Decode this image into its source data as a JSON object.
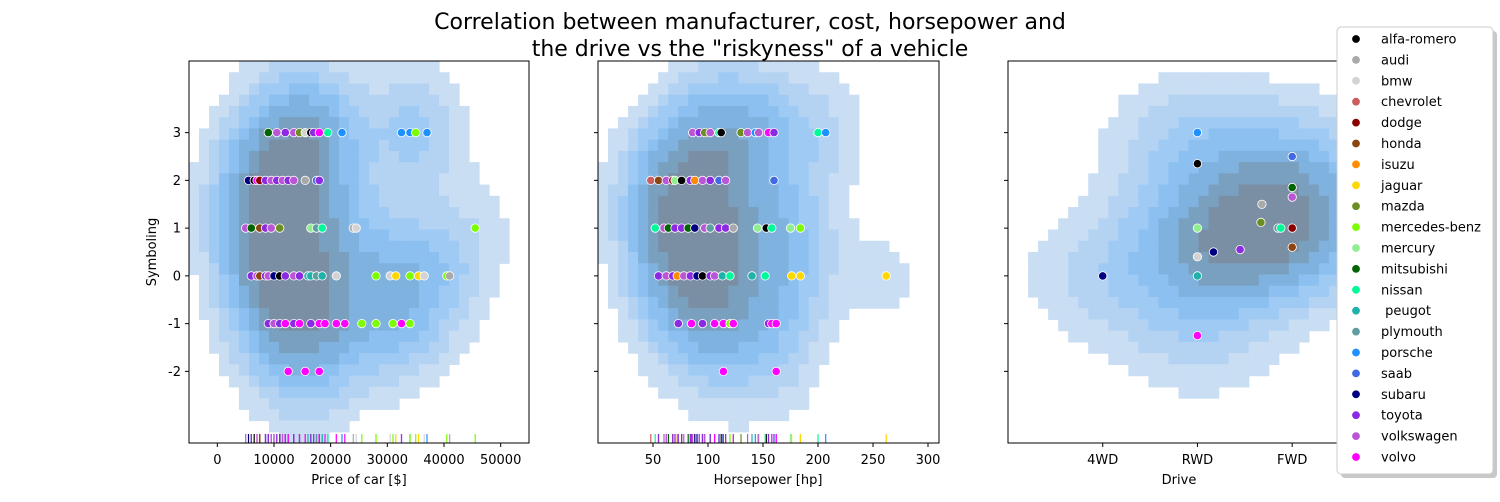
{
  "title_line1": "Correlation between manufacturer, cost, horsepower and",
  "title_line2": "the drive vs the \"riskyness\" of a vehicle",
  "legend": [
    {
      "name": "alfa-romero",
      "color": "#000000"
    },
    {
      "name": "audi",
      "color": "#a9a9a9"
    },
    {
      "name": "bmw",
      "color": "#d3d3d3"
    },
    {
      "name": "chevrolet",
      "color": "#cd5c5c"
    },
    {
      "name": "dodge",
      "color": "#8b0000"
    },
    {
      "name": "honda",
      "color": "#8b4513"
    },
    {
      "name": "isuzu",
      "color": "#ff8c00"
    },
    {
      "name": "jaguar",
      "color": "#ffd700"
    },
    {
      "name": "mazda",
      "color": "#6b8e23"
    },
    {
      "name": "mercedes-benz",
      "color": "#7cfc00"
    },
    {
      "name": "mercury",
      "color": "#90ee90"
    },
    {
      "name": "mitsubishi",
      "color": "#006400"
    },
    {
      "name": "nissan",
      "color": "#00fa9a"
    },
    {
      "name": " peugot",
      "color": "#20b2aa"
    },
    {
      "name": "plymouth",
      "color": "#5f9ea0"
    },
    {
      "name": "porsche",
      "color": "#1e90ff"
    },
    {
      "name": "saab",
      "color": "#4169e1"
    },
    {
      "name": "subaru",
      "color": "#000080"
    },
    {
      "name": "toyota",
      "color": "#8a2be2"
    },
    {
      "name": "volkswagen",
      "color": "#ba55d3"
    },
    {
      "name": "volvo",
      "color": "#ff00ff"
    }
  ],
  "chart_data": [
    {
      "type": "scatter",
      "xlabel": "Price of car [$]",
      "ylabel": "Symboling",
      "xlim": [
        -5000,
        55000
      ],
      "ylim": [
        -3.5,
        4.5
      ],
      "xticks": [
        "0",
        "10000",
        "20000",
        "30000",
        "40000",
        "50000"
      ],
      "xtick_values": [
        0,
        10000,
        20000,
        30000,
        40000,
        50000
      ],
      "yticks": [
        "3",
        "2",
        "1",
        "0",
        "-1",
        "-2"
      ],
      "ytick_values": [
        3,
        2,
        1,
        0,
        -1,
        -2
      ],
      "kde": true,
      "rug": true,
      "points": [
        {
          "x": 9000,
          "y": 3,
          "brand": "mitsubishi"
        },
        {
          "x": 10500,
          "y": 3,
          "brand": "volkswagen"
        },
        {
          "x": 12000,
          "y": 3,
          "brand": "toyota"
        },
        {
          "x": 13500,
          "y": 3,
          "brand": "volkswagen"
        },
        {
          "x": 14500,
          "y": 3,
          "brand": "mazda"
        },
        {
          "x": 15500,
          "y": 3,
          "brand": "bmw"
        },
        {
          "x": 16500,
          "y": 3,
          "brand": "alfa-romero"
        },
        {
          "x": 17000,
          "y": 3,
          "brand": "toyota"
        },
        {
          "x": 18000,
          "y": 3,
          "brand": "volvo"
        },
        {
          "x": 19500,
          "y": 3,
          "brand": "nissan"
        },
        {
          "x": 22000,
          "y": 3,
          "brand": "porsche"
        },
        {
          "x": 32500,
          "y": 3,
          "brand": "porsche"
        },
        {
          "x": 34000,
          "y": 3,
          "brand": "porsche"
        },
        {
          "x": 35000,
          "y": 3,
          "brand": "mercedes-benz"
        },
        {
          "x": 37000,
          "y": 3,
          "brand": "porsche"
        },
        {
          "x": 5500,
          "y": 2,
          "brand": "subaru"
        },
        {
          "x": 6500,
          "y": 2,
          "brand": "alfa-romero"
        },
        {
          "x": 7000,
          "y": 2,
          "brand": "volvo"
        },
        {
          "x": 7500,
          "y": 2,
          "brand": "dodge"
        },
        {
          "x": 8500,
          "y": 2,
          "brand": "toyota"
        },
        {
          "x": 9500,
          "y": 2,
          "brand": "volkswagen"
        },
        {
          "x": 10500,
          "y": 2,
          "brand": "toyota"
        },
        {
          "x": 11500,
          "y": 2,
          "brand": "volkswagen"
        },
        {
          "x": 12500,
          "y": 2,
          "brand": "toyota"
        },
        {
          "x": 13500,
          "y": 2,
          "brand": "volkswagen"
        },
        {
          "x": 15500,
          "y": 2,
          "brand": "audi"
        },
        {
          "x": 17500,
          "y": 2,
          "brand": "saab"
        },
        {
          "x": 18000,
          "y": 2,
          "brand": "toyota"
        },
        {
          "x": 5000,
          "y": 1,
          "brand": "volkswagen"
        },
        {
          "x": 6000,
          "y": 1,
          "brand": "mitsubishi"
        },
        {
          "x": 7500,
          "y": 1,
          "brand": "honda"
        },
        {
          "x": 8500,
          "y": 1,
          "brand": "toyota"
        },
        {
          "x": 9500,
          "y": 1,
          "brand": "volkswagen"
        },
        {
          "x": 11000,
          "y": 1,
          "brand": "mazda"
        },
        {
          "x": 16500,
          "y": 1,
          "brand": "mercury"
        },
        {
          "x": 17500,
          "y": 1,
          "brand": "plymouth"
        },
        {
          "x": 18500,
          "y": 1,
          "brand": "nissan"
        },
        {
          "x": 24000,
          "y": 1,
          "brand": "audi"
        },
        {
          "x": 24500,
          "y": 1,
          "brand": "bmw"
        },
        {
          "x": 45500,
          "y": 1,
          "brand": "mercedes-benz"
        },
        {
          "x": 6000,
          "y": 0,
          "brand": "toyota"
        },
        {
          "x": 7000,
          "y": 0,
          "brand": "volkswagen"
        },
        {
          "x": 7500,
          "y": 0,
          "brand": "honda"
        },
        {
          "x": 8500,
          "y": 0,
          "brand": "toyota"
        },
        {
          "x": 9000,
          "y": 0,
          "brand": "volkswagen"
        },
        {
          "x": 10000,
          "y": 0,
          "brand": "subaru"
        },
        {
          "x": 11000,
          "y": 0,
          "brand": "alfa-romero"
        },
        {
          "x": 12000,
          "y": 0,
          "brand": "toyota"
        },
        {
          "x": 13500,
          "y": 0,
          "brand": "volkswagen"
        },
        {
          "x": 14500,
          "y": 0,
          "brand": "toyota"
        },
        {
          "x": 16000,
          "y": 0,
          "brand": " peugot"
        },
        {
          "x": 16500,
          "y": 0,
          "brand": " peugot"
        },
        {
          "x": 17500,
          "y": 0,
          "brand": "plymouth"
        },
        {
          "x": 18500,
          "y": 0,
          "brand": " peugot"
        },
        {
          "x": 21000,
          "y": 0,
          "brand": "bmw"
        },
        {
          "x": 28000,
          "y": 0,
          "brand": "mercedes-benz"
        },
        {
          "x": 30500,
          "y": 0,
          "brand": "bmw"
        },
        {
          "x": 31500,
          "y": 0,
          "brand": "jaguar"
        },
        {
          "x": 34000,
          "y": 0,
          "brand": "mercedes-benz"
        },
        {
          "x": 35500,
          "y": 0,
          "brand": "jaguar"
        },
        {
          "x": 36500,
          "y": 0,
          "brand": "bmw"
        },
        {
          "x": 40500,
          "y": 0,
          "brand": "mercedes-benz"
        },
        {
          "x": 41000,
          "y": 0,
          "brand": "audi"
        },
        {
          "x": 9000,
          "y": -1,
          "brand": "toyota"
        },
        {
          "x": 10000,
          "y": -1,
          "brand": "volkswagen"
        },
        {
          "x": 11000,
          "y": -1,
          "brand": "toyota"
        },
        {
          "x": 12000,
          "y": -1,
          "brand": "volvo"
        },
        {
          "x": 13500,
          "y": -1,
          "brand": "toyota"
        },
        {
          "x": 14500,
          "y": -1,
          "brand": "volvo"
        },
        {
          "x": 16500,
          "y": -1,
          "brand": "toyota"
        },
        {
          "x": 18000,
          "y": -1,
          "brand": "volvo"
        },
        {
          "x": 19000,
          "y": -1,
          "brand": "volvo"
        },
        {
          "x": 21000,
          "y": -1,
          "brand": "volvo"
        },
        {
          "x": 22500,
          "y": -1,
          "brand": "volvo"
        },
        {
          "x": 25500,
          "y": -1,
          "brand": "mercedes-benz"
        },
        {
          "x": 28000,
          "y": -1,
          "brand": "mercedes-benz"
        },
        {
          "x": 31000,
          "y": -1,
          "brand": "mercedes-benz"
        },
        {
          "x": 32500,
          "y": -1,
          "brand": "volvo"
        },
        {
          "x": 34000,
          "y": -1,
          "brand": "mercedes-benz"
        },
        {
          "x": 12500,
          "y": -2,
          "brand": "volvo"
        },
        {
          "x": 15500,
          "y": -2,
          "brand": "volvo"
        },
        {
          "x": 18000,
          "y": -2,
          "brand": "volvo"
        }
      ]
    },
    {
      "type": "scatter",
      "xlabel": "Horsepower [hp]",
      "ylabel": "",
      "xlim": [
        0,
        310
      ],
      "ylim": [
        -3.5,
        4.5
      ],
      "xticks": [
        "50",
        "100",
        "150",
        "200",
        "250",
        "300"
      ],
      "xtick_values": [
        50,
        100,
        150,
        200,
        250,
        300
      ],
      "yticks": [],
      "ytick_values": [
        3,
        2,
        1,
        0,
        -1,
        -2
      ],
      "kde": true,
      "rug": true,
      "points": [
        {
          "x": 86,
          "y": 3,
          "brand": "volkswagen"
        },
        {
          "x": 92,
          "y": 3,
          "brand": "toyota"
        },
        {
          "x": 97,
          "y": 3,
          "brand": "mazda"
        },
        {
          "x": 102,
          "y": 3,
          "brand": "volkswagen"
        },
        {
          "x": 110,
          "y": 3,
          "brand": "nissan"
        },
        {
          "x": 112,
          "y": 3,
          "brand": "alfa-romero"
        },
        {
          "x": 130,
          "y": 3,
          "brand": "mazda"
        },
        {
          "x": 136,
          "y": 3,
          "brand": "volkswagen"
        },
        {
          "x": 143,
          "y": 3,
          "brand": "porsche"
        },
        {
          "x": 146,
          "y": 3,
          "brand": "volkswagen"
        },
        {
          "x": 155,
          "y": 3,
          "brand": "volvo"
        },
        {
          "x": 160,
          "y": 3,
          "brand": "toyota"
        },
        {
          "x": 200,
          "y": 3,
          "brand": "nissan"
        },
        {
          "x": 207,
          "y": 3,
          "brand": "porsche"
        },
        {
          "x": 48,
          "y": 2,
          "brand": "chevrolet"
        },
        {
          "x": 55,
          "y": 2,
          "brand": "honda"
        },
        {
          "x": 62,
          "y": 2,
          "brand": "volkswagen"
        },
        {
          "x": 68,
          "y": 2,
          "brand": "dodge"
        },
        {
          "x": 70,
          "y": 2,
          "brand": "mercury"
        },
        {
          "x": 76,
          "y": 2,
          "brand": "alfa-romero"
        },
        {
          "x": 84,
          "y": 2,
          "brand": "toyota"
        },
        {
          "x": 88,
          "y": 2,
          "brand": "isuzu"
        },
        {
          "x": 95,
          "y": 2,
          "brand": "volkswagen"
        },
        {
          "x": 102,
          "y": 2,
          "brand": "toyota"
        },
        {
          "x": 110,
          "y": 2,
          "brand": "saab"
        },
        {
          "x": 116,
          "y": 2,
          "brand": "volkswagen"
        },
        {
          "x": 160,
          "y": 2,
          "brand": "saab"
        },
        {
          "x": 52,
          "y": 1,
          "brand": "nissan"
        },
        {
          "x": 60,
          "y": 1,
          "brand": "volkswagen"
        },
        {
          "x": 64,
          "y": 1,
          "brand": "mitsubishi"
        },
        {
          "x": 70,
          "y": 1,
          "brand": "toyota"
        },
        {
          "x": 76,
          "y": 1,
          "brand": "toyota"
        },
        {
          "x": 82,
          "y": 1,
          "brand": "mitsubishi"
        },
        {
          "x": 88,
          "y": 1,
          "brand": "subaru"
        },
        {
          "x": 97,
          "y": 1,
          "brand": "volkswagen"
        },
        {
          "x": 102,
          "y": 1,
          "brand": "plymouth"
        },
        {
          "x": 110,
          "y": 1,
          "brand": "toyota"
        },
        {
          "x": 116,
          "y": 1,
          "brand": "toyota"
        },
        {
          "x": 123,
          "y": 1,
          "brand": "audi"
        },
        {
          "x": 145,
          "y": 1,
          "brand": "mercury"
        },
        {
          "x": 153,
          "y": 1,
          "brand": "alfa-romero"
        },
        {
          "x": 158,
          "y": 1,
          "brand": "nissan"
        },
        {
          "x": 175,
          "y": 1,
          "brand": "mercury"
        },
        {
          "x": 184,
          "y": 1,
          "brand": "mercedes-benz"
        },
        {
          "x": 55,
          "y": 0,
          "brand": "toyota"
        },
        {
          "x": 62,
          "y": 0,
          "brand": "volkswagen"
        },
        {
          "x": 68,
          "y": 0,
          "brand": "toyota"
        },
        {
          "x": 72,
          "y": 0,
          "brand": "isuzu"
        },
        {
          "x": 78,
          "y": 0,
          "brand": "volkswagen"
        },
        {
          "x": 84,
          "y": 0,
          "brand": "toyota"
        },
        {
          "x": 90,
          "y": 0,
          "brand": "subaru"
        },
        {
          "x": 95,
          "y": 0,
          "brand": "alfa-romero"
        },
        {
          "x": 102,
          "y": 0,
          "brand": "toyota"
        },
        {
          "x": 106,
          "y": 0,
          "brand": "volkswagen"
        },
        {
          "x": 113,
          "y": 0,
          "brand": " peugot"
        },
        {
          "x": 120,
          "y": 0,
          "brand": "nissan"
        },
        {
          "x": 140,
          "y": 0,
          "brand": " peugot"
        },
        {
          "x": 152,
          "y": 0,
          "brand": "nissan"
        },
        {
          "x": 176,
          "y": 0,
          "brand": "jaguar"
        },
        {
          "x": 184,
          "y": 0,
          "brand": "jaguar"
        },
        {
          "x": 262,
          "y": 0,
          "brand": "jaguar"
        },
        {
          "x": 73,
          "y": -1,
          "brand": "toyota"
        },
        {
          "x": 85,
          "y": -1,
          "brand": "volvo"
        },
        {
          "x": 95,
          "y": -1,
          "brand": "toyota"
        },
        {
          "x": 106,
          "y": -1,
          "brand": "volvo"
        },
        {
          "x": 114,
          "y": -1,
          "brand": "volvo"
        },
        {
          "x": 120,
          "y": -1,
          "brand": "mercedes-benz"
        },
        {
          "x": 123,
          "y": -1,
          "brand": "volvo"
        },
        {
          "x": 155,
          "y": -1,
          "brand": "toyota"
        },
        {
          "x": 158,
          "y": -1,
          "brand": "volvo"
        },
        {
          "x": 162,
          "y": -1,
          "brand": "volvo"
        },
        {
          "x": 114,
          "y": -2,
          "brand": "volvo"
        },
        {
          "x": 162,
          "y": -2,
          "brand": "volvo"
        }
      ]
    },
    {
      "type": "scatter",
      "xlabel": "Drive",
      "ylabel": "",
      "categories": [
        "4WD",
        "RWD",
        "FWD"
      ],
      "xlim": [
        -1.0,
        2.6
      ],
      "ylim": [
        -3.5,
        4.5
      ],
      "yticks": [],
      "ytick_values": [
        3,
        2,
        1,
        0,
        -1,
        -2
      ],
      "kde": true,
      "points": [
        {
          "x": 0,
          "y": 0,
          "brand": "subaru"
        },
        {
          "x": 1,
          "y": 3,
          "brand": "porsche"
        },
        {
          "x": 1,
          "y": 2.35,
          "brand": "alfa-romero"
        },
        {
          "x": 1,
          "y": 1,
          "brand": "mercury"
        },
        {
          "x": 1,
          "y": 0.4,
          "brand": "bmw"
        },
        {
          "x": 1,
          "y": 0,
          "brand": " peugot"
        },
        {
          "x": 1,
          "y": -1.25,
          "brand": "volvo"
        },
        {
          "x": 1.17,
          "y": 0.5,
          "brand": "subaru"
        },
        {
          "x": 1.45,
          "y": 0.55,
          "brand": "toyota"
        },
        {
          "x": 1.68,
          "y": 1.5,
          "brand": "audi"
        },
        {
          "x": 1.67,
          "y": 1.12,
          "brand": "mazda"
        },
        {
          "x": 1.85,
          "y": 1.0,
          "brand": "plymouth"
        },
        {
          "x": 1.88,
          "y": 1.0,
          "brand": "nissan"
        },
        {
          "x": 2,
          "y": 2.5,
          "brand": "saab"
        },
        {
          "x": 2,
          "y": 1.85,
          "brand": "mitsubishi"
        },
        {
          "x": 2,
          "y": 1.65,
          "brand": "volkswagen"
        },
        {
          "x": 2,
          "y": 1.0,
          "brand": "dodge"
        },
        {
          "x": 2,
          "y": 0.6,
          "brand": "honda"
        }
      ]
    }
  ]
}
